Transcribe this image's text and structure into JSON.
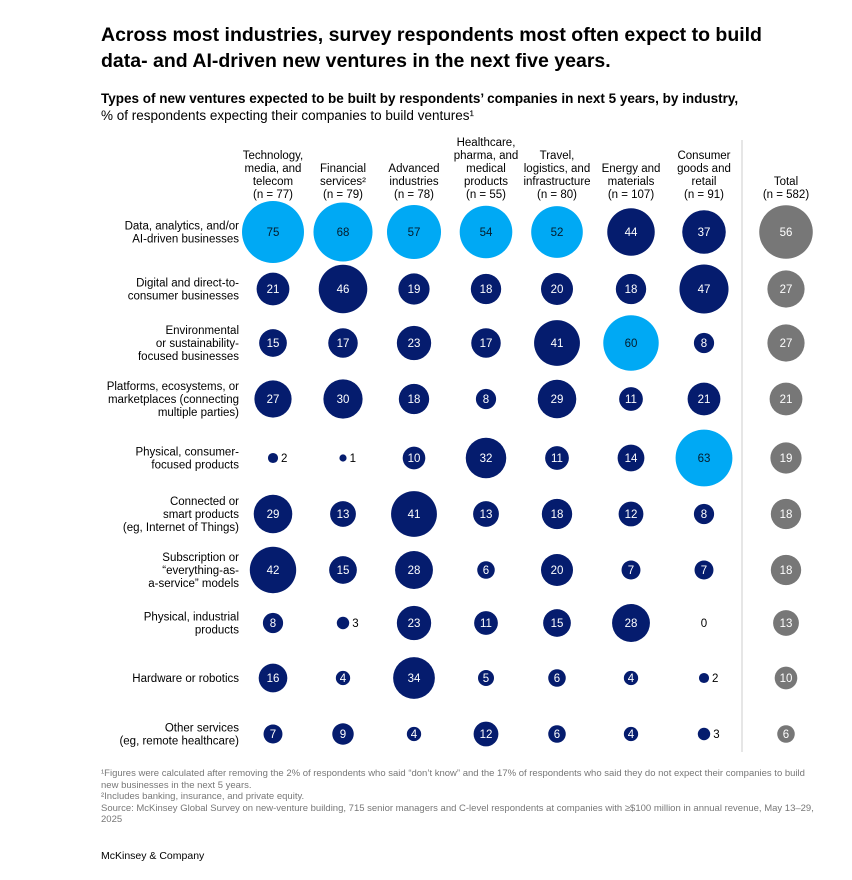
{
  "title": "Across most industries, survey respondents most often expect to build data- and AI-driven new ventures in the next five years.",
  "subtitle": "Types of new ventures expected to be built by respondents’ companies in next 5 years, by industry,",
  "subtitle_unit": "% of respondents expecting their companies to build ventures¹",
  "colors": {
    "default": "#051C6E",
    "highlight": "#00A9F4",
    "total": "#777777"
  },
  "chart_data": {
    "type": "bubble-table",
    "columns": [
      {
        "label": [
          "Technology,",
          "media, and",
          "telecom",
          "(n = 77)"
        ]
      },
      {
        "label": [
          "Financial",
          "services²",
          "(n = 79)"
        ]
      },
      {
        "label": [
          "Advanced",
          "industries",
          "(n = 78)"
        ]
      },
      {
        "label": [
          "Healthcare,",
          "pharma, and",
          "medical",
          "products",
          "(n = 55)"
        ]
      },
      {
        "label": [
          "Travel,",
          "logistics, and",
          "infrastructure",
          "(n = 80)"
        ]
      },
      {
        "label": [
          "Energy and",
          "materials",
          "(n = 107)"
        ]
      },
      {
        "label": [
          "Consumer",
          "goods and",
          "retail",
          "(n = 91)"
        ]
      },
      {
        "label": [
          "Total",
          "(n = 582)"
        ]
      }
    ],
    "rows": [
      {
        "label": [
          "Data, analytics, and/or",
          "AI-driven businesses"
        ],
        "values": [
          75,
          68,
          57,
          54,
          52,
          44,
          37,
          56
        ]
      },
      {
        "label": [
          "Digital and direct-to-",
          "consumer businesses"
        ],
        "values": [
          21,
          46,
          19,
          18,
          20,
          18,
          47,
          27
        ]
      },
      {
        "label": [
          "Environmental",
          "or sustainability-",
          "focused businesses"
        ],
        "values": [
          15,
          17,
          23,
          17,
          41,
          60,
          8,
          27
        ]
      },
      {
        "label": [
          "Platforms, ecosystems, or",
          "marketplaces (connecting",
          "multiple parties)"
        ],
        "values": [
          27,
          30,
          18,
          8,
          29,
          11,
          21,
          21
        ]
      },
      {
        "label": [
          "Physical, consumer-",
          "focused products"
        ],
        "values": [
          2,
          1,
          10,
          32,
          11,
          14,
          63,
          19
        ]
      },
      {
        "label": [
          "Connected or",
          "smart products",
          "(eg, Internet of Things)"
        ],
        "values": [
          29,
          13,
          41,
          13,
          18,
          12,
          8,
          18
        ]
      },
      {
        "label": [
          "Subscription or",
          "“everything-as-",
          "a-service” models"
        ],
        "values": [
          42,
          15,
          28,
          6,
          20,
          7,
          7,
          18
        ]
      },
      {
        "label": [
          "Physical, industrial",
          "products"
        ],
        "values": [
          8,
          3,
          23,
          11,
          15,
          28,
          0,
          13
        ]
      },
      {
        "label": [
          "Hardware or robotics"
        ],
        "values": [
          16,
          4,
          34,
          5,
          6,
          4,
          2,
          10
        ]
      },
      {
        "label": [
          "Other services",
          "(eg, remote healthcare)"
        ],
        "values": [
          7,
          9,
          4,
          12,
          6,
          4,
          3,
          6
        ]
      }
    ],
    "highlighted": "maximum per industry column",
    "value_unit": "%"
  },
  "footnotes": [
    "¹Figures were calculated after removing the 2% of respondents who said “don’t know” and the 17% of respondents who said they do not expect their companies to build new businesses in the next 5 years.",
    "²Includes banking, insurance, and private equity.",
    "Source: McKinsey Global Survey on new-venture building, 715 senior managers and C-level respondents at companies with ≥$100 million in annual revenue, May 13–29, 2025"
  ],
  "brand": "McKinsey & Company"
}
